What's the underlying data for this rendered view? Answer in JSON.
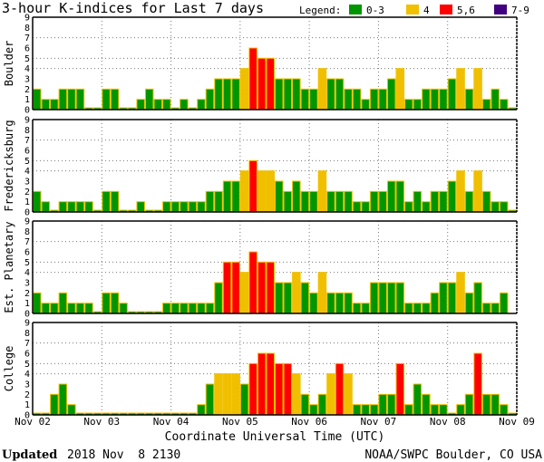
{
  "chart_data": {
    "type": "bar",
    "title": "3-hour K-indices for Last 7 days",
    "xlabel": "Coordinate Universal Time (UTC)",
    "x_ticks": [
      "Nov 02",
      "Nov 03",
      "Nov 04",
      "Nov 05",
      "Nov 06",
      "Nov 07",
      "Nov 08",
      "Nov 09"
    ],
    "y_ticks": [
      "0",
      "1",
      "2",
      "3",
      "4",
      "5",
      "6",
      "7",
      "8",
      "9"
    ],
    "ylim": [
      0,
      9
    ],
    "grid_y": [
      4,
      5,
      7
    ],
    "bars_per_day": 8,
    "legend": {
      "label": "Legend:",
      "placement": "top-right",
      "entries": [
        {
          "label": "0-3",
          "color": "#009600"
        },
        {
          "label": "4",
          "color": "#f0c000"
        },
        {
          "label": "5,6",
          "color": "#ff0000"
        },
        {
          "label": "7-9",
          "color": "#400080"
        }
      ]
    },
    "series": [
      {
        "name": "Boulder",
        "values": [
          2,
          1,
          1,
          2,
          2,
          2,
          0,
          0,
          2,
          2,
          0,
          0,
          1,
          2,
          1,
          1,
          0,
          1,
          0,
          1,
          2,
          3,
          3,
          3,
          4,
          6,
          5,
          5,
          3,
          3,
          3,
          2,
          2,
          4,
          3,
          3,
          2,
          2,
          1,
          2,
          2,
          3,
          4,
          1,
          1,
          2,
          2,
          2,
          3,
          4,
          2,
          4,
          1,
          2,
          1,
          0
        ]
      },
      {
        "name": "Fredericksburg",
        "values": [
          2,
          1,
          0,
          1,
          1,
          1,
          1,
          0,
          2,
          2,
          0,
          0,
          1,
          0,
          0,
          1,
          1,
          1,
          1,
          1,
          2,
          2,
          3,
          3,
          4,
          5,
          4,
          4,
          3,
          2,
          3,
          2,
          2,
          4,
          2,
          2,
          2,
          1,
          1,
          2,
          2,
          3,
          3,
          1,
          2,
          1,
          2,
          2,
          3,
          4,
          2,
          4,
          2,
          1,
          1,
          0
        ]
      },
      {
        "name": "Est. Planetary",
        "values": [
          2,
          1,
          1,
          2,
          1,
          1,
          1,
          0,
          2,
          2,
          1,
          0,
          0,
          0,
          0,
          1,
          1,
          1,
          1,
          1,
          1,
          3,
          5,
          5,
          4,
          6,
          5,
          5,
          3,
          3,
          4,
          3,
          2,
          4,
          2,
          2,
          2,
          1,
          1,
          3,
          3,
          3,
          3,
          1,
          1,
          1,
          2,
          3,
          3,
          4,
          2,
          3,
          1,
          1,
          2,
          null
        ]
      },
      {
        "name": "College",
        "values": [
          0,
          0,
          2,
          3,
          1,
          0,
          0,
          0,
          0,
          0,
          0,
          0,
          0,
          0,
          0,
          0,
          0,
          0,
          0,
          1,
          3,
          4,
          4,
          4,
          3,
          5,
          6,
          6,
          5,
          5,
          4,
          2,
          1,
          2,
          4,
          5,
          4,
          1,
          1,
          1,
          2,
          2,
          5,
          1,
          3,
          2,
          1,
          1,
          0,
          1,
          2,
          6,
          2,
          2,
          1,
          0
        ]
      }
    ]
  },
  "footer": {
    "updated_label": "Updated",
    "updated_value": "2018 Nov  8 2130",
    "credit": "NOAA/SWPC Boulder, CO USA"
  }
}
